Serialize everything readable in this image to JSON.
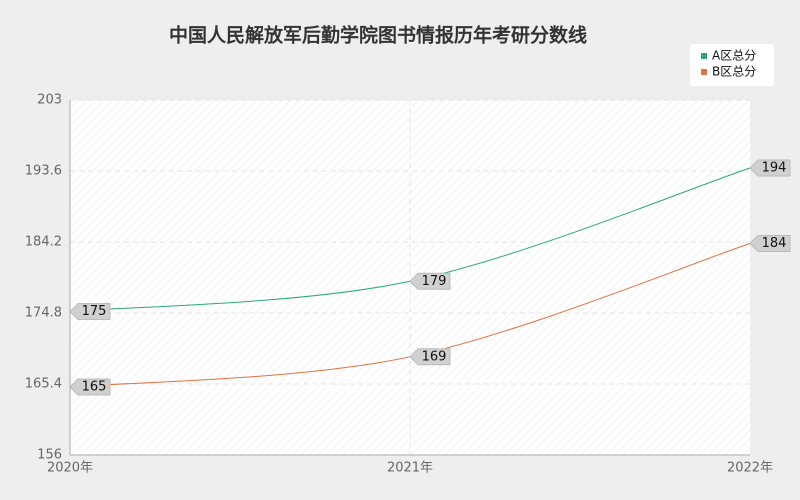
{
  "chart_data": {
    "type": "line",
    "title": "中国人民解放军后勤学院图书情报历年考研分数线",
    "categories": [
      "2020年",
      "2021年",
      "2022年"
    ],
    "series": [
      {
        "name": "A区总分",
        "color": "#2aa77f",
        "values": [
          175,
          179,
          194
        ]
      },
      {
        "name": "B区总分",
        "color": "#e0703f",
        "values": [
          165,
          169,
          184
        ]
      }
    ],
    "ylim": [
      156,
      203
    ],
    "yticks": [
      156,
      165.4,
      174.8,
      184.2,
      193.6,
      203
    ],
    "grid": true,
    "legend": "top-right"
  }
}
